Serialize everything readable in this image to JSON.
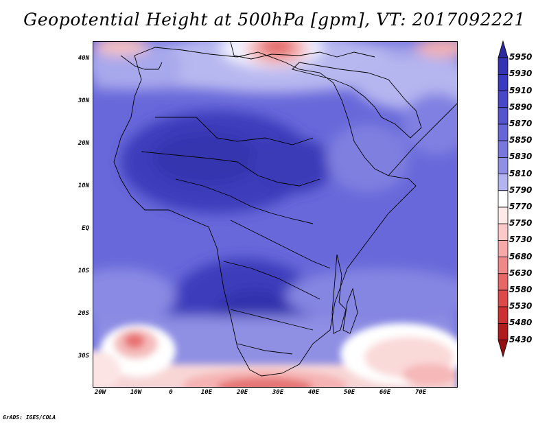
{
  "title": "Geopotential Height at 500hPa [gpm], VT: 2017092221",
  "credit": "GrADS: IGES/COLA",
  "axes": {
    "lat_labels": [
      "40N",
      "30N",
      "20N",
      "10N",
      "EQ",
      "10S",
      "20S",
      "30S"
    ],
    "lon_labels": [
      "20W",
      "10W",
      "0",
      "10E",
      "20E",
      "30E",
      "40E",
      "50E",
      "60E",
      "70E"
    ]
  },
  "colorbar": {
    "levels": [
      "5950",
      "5930",
      "5910",
      "5890",
      "5870",
      "5850",
      "5830",
      "5810",
      "5790",
      "5770",
      "5750",
      "5730",
      "5680",
      "5630",
      "5580",
      "5530",
      "5480",
      "5430"
    ],
    "colors": [
      "#2a2a9c",
      "#3333b4",
      "#3a3ac0",
      "#4747c8",
      "#5555d0",
      "#6666d8",
      "#7777de",
      "#8f8fe6",
      "#b3b3f0",
      "#ffffff",
      "#ffe8e8",
      "#fcc8c8",
      "#f7a8a8",
      "#ef8888",
      "#e76666",
      "#dd4848",
      "#cc3030",
      "#b01c1c",
      "#951010"
    ]
  }
}
